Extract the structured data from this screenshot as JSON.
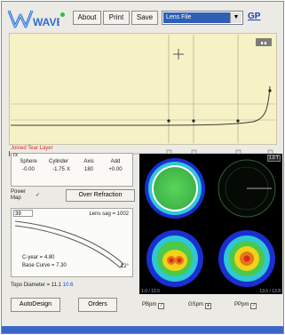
{
  "app": {
    "name": "WAVE"
  },
  "toolbar": {
    "about_label": "About",
    "print_label": "Print",
    "save_label": "Save",
    "selected_option": "Lens File",
    "gp_label": "GP"
  },
  "scrub": {
    "label": "Joined Tear Layer"
  },
  "prescription": {
    "headers": [
      "Sphere",
      "Cylinder",
      "Axis",
      "Add"
    ],
    "values": [
      "-0.00",
      "-1.75",
      "180",
      "+0.00"
    ],
    "x_sign": "X"
  },
  "power_map": {
    "label_line1": "Power",
    "label_line2": "Map",
    "checkbox": "✓"
  },
  "over_refraction_label": "Over Refraction",
  "lens": {
    "number": "39",
    "sag": "Lens sag = 1002",
    "cyear": "C-year = 4.80",
    "base_curve": "Base Curve = 7.30",
    "angle": "12°"
  },
  "topo": {
    "label": "Topo Diameter = ",
    "value1": "11.1",
    "value2": "10.6"
  },
  "maps": {
    "badge_tr": "1.0 T",
    "badge_tl_foot": "1.0 / 13.5",
    "badge_br_foot": "13.5 / 13.8",
    "palette": {
      "green": "#4cc84a",
      "blue": "#1b2ed0",
      "red": "#e02818",
      "yellow": "#f2d21a",
      "cyan": "#2ec8d4"
    }
  },
  "bottom": {
    "autodesign_label": "AutoDesign",
    "orders_label": "Orders",
    "check1": "PBpm",
    "check2": "GSpm",
    "check3": "PPpm",
    "check1_state": "✓",
    "check2_state": "●",
    "check3_state": "✓"
  },
  "colors": {
    "accent": "#2f5fb5",
    "plot_bg": "#f6f2c6"
  }
}
